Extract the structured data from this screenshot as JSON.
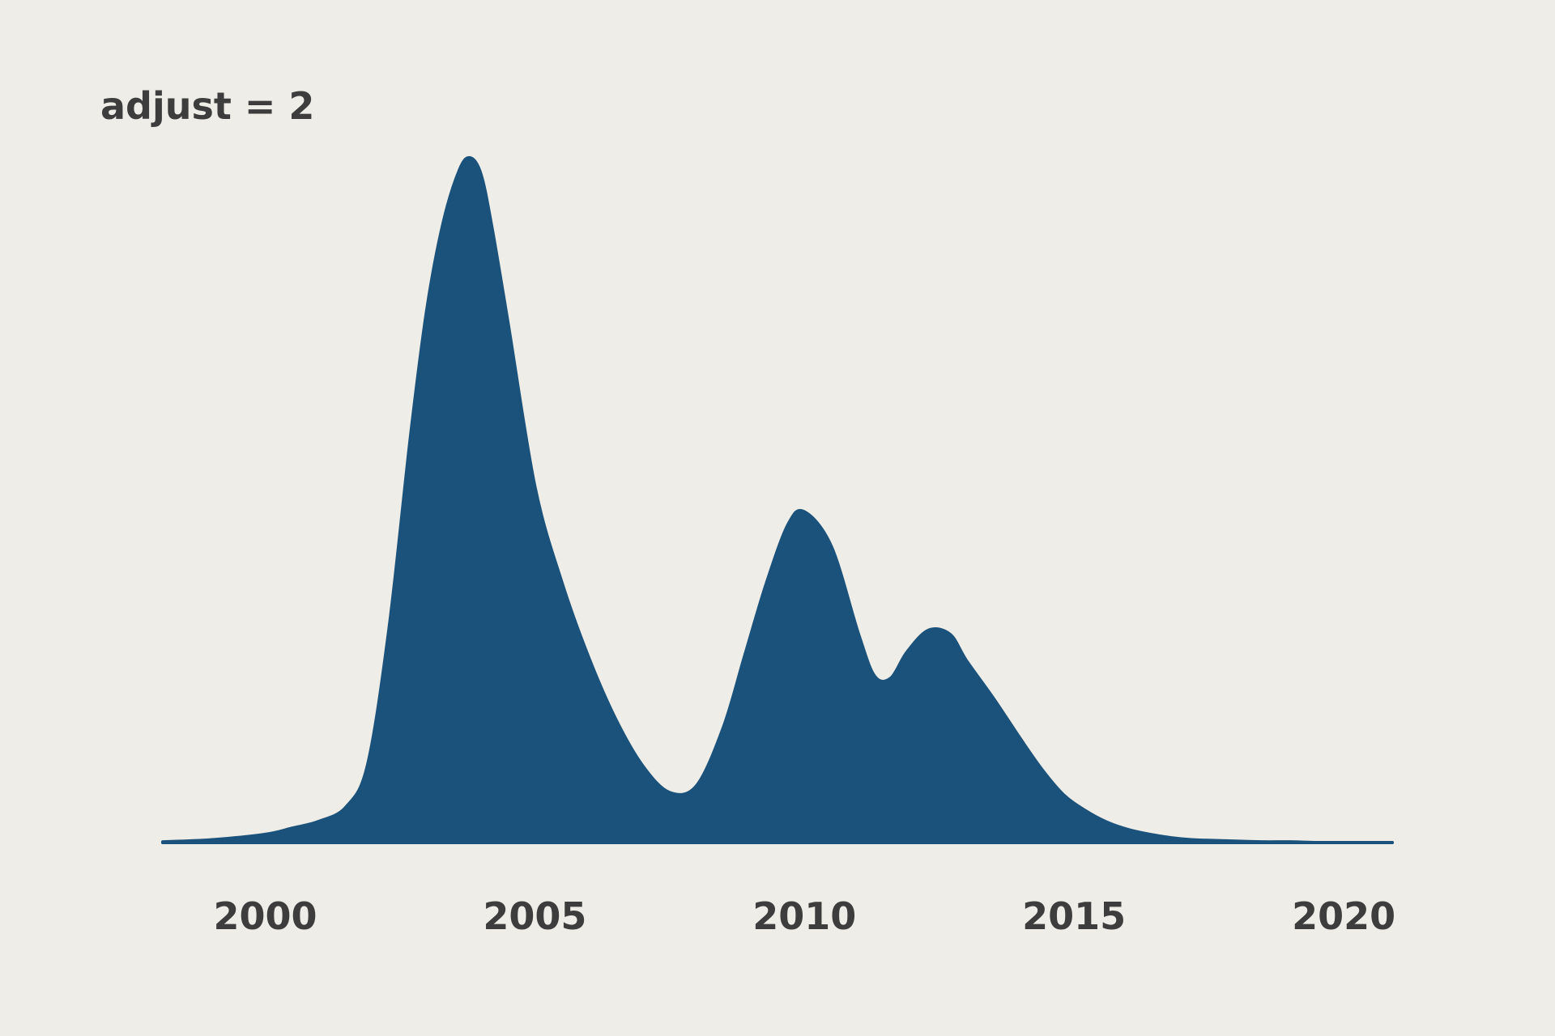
{
  "chart_data": {
    "type": "area",
    "title": "adjust = 2",
    "xlabel": "",
    "ylabel": "",
    "x_ticks": [
      2000,
      2005,
      2010,
      2015,
      2020
    ],
    "xlim": [
      1998.1,
      2020.9
    ],
    "ylim": [
      0,
      1.0
    ],
    "grid": false,
    "legend": "none",
    "colors": {
      "fill": "#1b527b",
      "background": "#eeede7",
      "text": "#3d3d3d"
    },
    "series": [
      {
        "x": [
          1998.1,
          1999.0,
          2000.0,
          2000.5,
          2001.0,
          2001.5,
          2001.9,
          2002.3,
          2002.7,
          2003.0,
          2003.3,
          2003.6,
          2003.8,
          2004.0,
          2004.2,
          2004.5,
          2005.0,
          2005.5,
          2006.0,
          2006.5,
          2007.0,
          2007.5,
          2008.0,
          2008.5,
          2008.9,
          2009.3,
          2009.7,
          2010.0,
          2010.5,
          2011.0,
          2011.3,
          2011.6,
          2011.9,
          2012.3,
          2012.7,
          2013.0,
          2013.5,
          2014.0,
          2014.4,
          2014.8,
          2015.2,
          2015.6,
          2016.0,
          2016.4,
          2016.8,
          2017.2,
          2017.6,
          2018.0,
          2018.5,
          2019.0,
          2019.5,
          2020.0,
          2020.5,
          2020.9
        ],
        "y": [
          0.001,
          0.004,
          0.012,
          0.021,
          0.031,
          0.052,
          0.114,
          0.315,
          0.597,
          0.78,
          0.905,
          0.982,
          1.0,
          0.976,
          0.9,
          0.76,
          0.52,
          0.38,
          0.27,
          0.18,
          0.112,
          0.073,
          0.083,
          0.169,
          0.275,
          0.38,
          0.465,
          0.483,
          0.432,
          0.305,
          0.243,
          0.24,
          0.278,
          0.31,
          0.304,
          0.266,
          0.211,
          0.152,
          0.107,
          0.07,
          0.047,
          0.03,
          0.019,
          0.012,
          0.007,
          0.004,
          0.003,
          0.002,
          0.001,
          0.001,
          0.0,
          0.0,
          0.0,
          0.0
        ]
      }
    ]
  }
}
